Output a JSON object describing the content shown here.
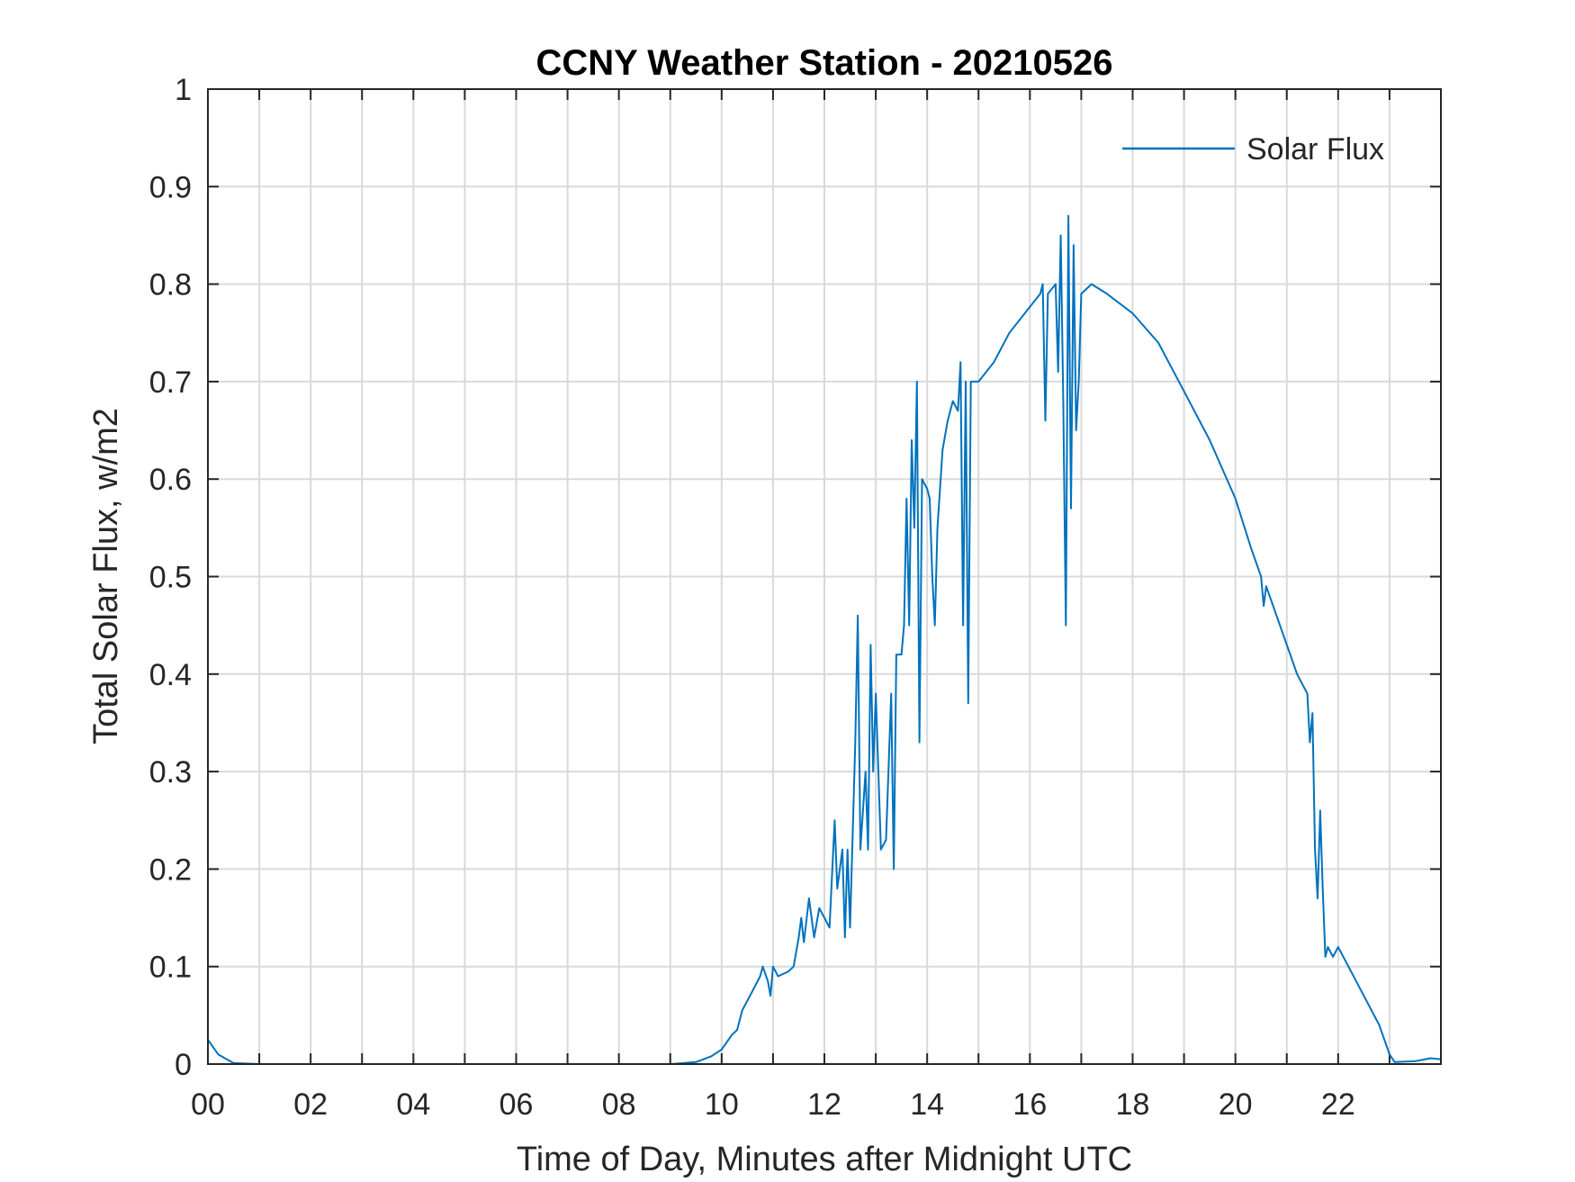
{
  "chart_data": {
    "type": "line",
    "title": "CCNY Weather Station - 20210526",
    "xlabel": "Time of Day, Minutes after Midnight UTC",
    "ylabel": "Total Solar Flux, w/m2",
    "xlim": [
      0,
      24
    ],
    "ylim": [
      0,
      1
    ],
    "grid": true,
    "legend_position": "top-right",
    "x_ticks": [
      0,
      2,
      4,
      6,
      8,
      10,
      12,
      14,
      16,
      18,
      20,
      22
    ],
    "x_tick_labels": [
      "00",
      "02",
      "04",
      "06",
      "08",
      "10",
      "12",
      "14",
      "16",
      "18",
      "20",
      "22"
    ],
    "y_ticks": [
      0,
      0.1,
      0.2,
      0.3,
      0.4,
      0.5,
      0.6,
      0.7,
      0.8,
      0.9,
      1
    ],
    "y_tick_labels": [
      "0",
      "0.1",
      "0.2",
      "0.3",
      "0.4",
      "0.5",
      "0.6",
      "0.7",
      "0.8",
      "0.9",
      "1"
    ],
    "series": [
      {
        "name": "Solar Flux",
        "color": "#0072BD",
        "x": [
          0,
          0.2,
          0.5,
          1,
          2,
          3,
          4,
          5,
          6,
          7,
          8,
          9,
          9.5,
          9.8,
          10,
          10.2,
          10.3,
          10.4,
          10.6,
          10.75,
          10.8,
          10.9,
          10.95,
          11,
          11.1,
          11.3,
          11.4,
          11.5,
          11.55,
          11.6,
          11.7,
          11.8,
          11.9,
          12,
          12.1,
          12.2,
          12.25,
          12.35,
          12.4,
          12.45,
          12.5,
          12.6,
          12.65,
          12.7,
          12.8,
          12.85,
          12.9,
          12.95,
          13,
          13.1,
          13.2,
          13.3,
          13.35,
          13.4,
          13.5,
          13.55,
          13.6,
          13.65,
          13.7,
          13.75,
          13.8,
          13.85,
          13.9,
          14,
          14.05,
          14.1,
          14.15,
          14.2,
          14.3,
          14.4,
          14.5,
          14.6,
          14.65,
          14.7,
          14.75,
          14.8,
          14.85,
          15,
          15.3,
          15.6,
          15.9,
          16.2,
          16.25,
          16.3,
          16.35,
          16.5,
          16.55,
          16.6,
          16.65,
          16.7,
          16.75,
          16.8,
          16.85,
          16.9,
          16.95,
          17,
          17.2,
          17.5,
          18,
          18.5,
          19,
          19.5,
          20,
          20.3,
          20.5,
          20.55,
          20.6,
          21,
          21.2,
          21.4,
          21.45,
          21.5,
          21.55,
          21.6,
          21.65,
          21.7,
          21.75,
          21.8,
          21.9,
          22,
          22.2,
          22.5,
          22.8,
          23,
          23.1,
          23.5,
          23.8,
          23.98
        ],
        "values": [
          0.025,
          0.01,
          0.001,
          0,
          0,
          0,
          0,
          0,
          0,
          0,
          0,
          0,
          0.002,
          0.008,
          0.015,
          0.03,
          0.035,
          0.055,
          0.075,
          0.09,
          0.1,
          0.085,
          0.07,
          0.1,
          0.09,
          0.095,
          0.1,
          0.13,
          0.15,
          0.125,
          0.17,
          0.13,
          0.16,
          0.15,
          0.14,
          0.25,
          0.18,
          0.22,
          0.13,
          0.22,
          0.14,
          0.33,
          0.46,
          0.22,
          0.3,
          0.22,
          0.43,
          0.3,
          0.38,
          0.22,
          0.23,
          0.38,
          0.2,
          0.42,
          0.42,
          0.45,
          0.58,
          0.45,
          0.64,
          0.55,
          0.7,
          0.33,
          0.6,
          0.59,
          0.58,
          0.5,
          0.45,
          0.55,
          0.63,
          0.66,
          0.68,
          0.67,
          0.72,
          0.45,
          0.7,
          0.37,
          0.7,
          0.7,
          0.72,
          0.75,
          0.77,
          0.79,
          0.8,
          0.66,
          0.79,
          0.8,
          0.71,
          0.85,
          0.68,
          0.45,
          0.87,
          0.57,
          0.84,
          0.65,
          0.7,
          0.79,
          0.8,
          0.79,
          0.77,
          0.74,
          0.69,
          0.64,
          0.58,
          0.53,
          0.5,
          0.47,
          0.49,
          0.43,
          0.4,
          0.38,
          0.33,
          0.36,
          0.22,
          0.17,
          0.26,
          0.18,
          0.11,
          0.12,
          0.11,
          0.12,
          0.1,
          0.07,
          0.04,
          0.01,
          0.002,
          0.003,
          0.006,
          0.005
        ]
      }
    ]
  }
}
